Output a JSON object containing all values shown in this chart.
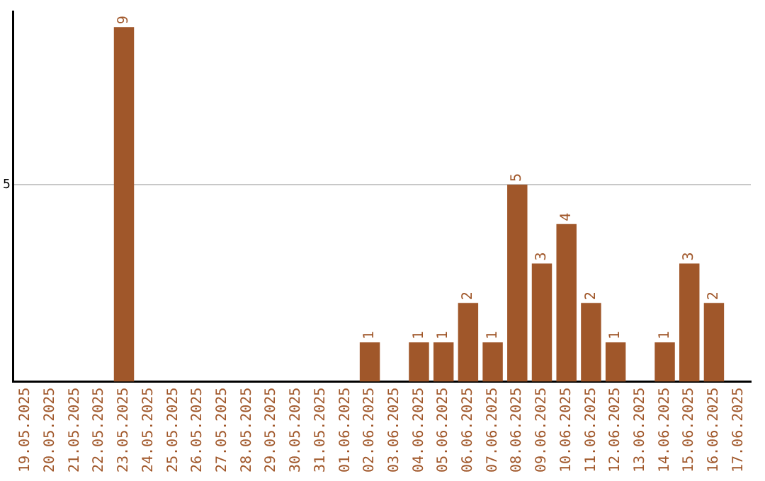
{
  "chart_data": {
    "type": "bar",
    "categories": [
      "19.05.2025",
      "20.05.2025",
      "21.05.2025",
      "22.05.2025",
      "23.05.2025",
      "24.05.2025",
      "25.05.2025",
      "26.05.2025",
      "27.05.2025",
      "28.05.2025",
      "29.05.2025",
      "30.05.2025",
      "31.05.2025",
      "01.06.2025",
      "02.06.2025",
      "03.06.2025",
      "04.06.2025",
      "05.06.2025",
      "06.06.2025",
      "07.06.2025",
      "08.06.2025",
      "09.06.2025",
      "10.06.2025",
      "11.06.2025",
      "12.06.2025",
      "13.06.2025",
      "14.06.2025",
      "15.06.2025",
      "16.06.2025",
      "17.06.2025"
    ],
    "values": [
      0,
      0,
      0,
      0,
      9,
      0,
      0,
      0,
      0,
      0,
      0,
      0,
      0,
      0,
      1,
      0,
      1,
      1,
      2,
      1,
      5,
      3,
      4,
      2,
      1,
      0,
      1,
      3,
      2,
      0
    ],
    "value_labels": [
      null,
      null,
      null,
      null,
      "9",
      null,
      null,
      null,
      null,
      null,
      null,
      null,
      null,
      null,
      "1",
      null,
      "1",
      "1",
      "2",
      "1",
      "5",
      "3",
      "4",
      "2",
      "1",
      null,
      "1",
      "3",
      "2",
      null
    ],
    "color": "#a0572a",
    "ylim": [
      0,
      9.4
    ],
    "yticks": [
      5
    ],
    "grid": "y",
    "legend": false
  }
}
